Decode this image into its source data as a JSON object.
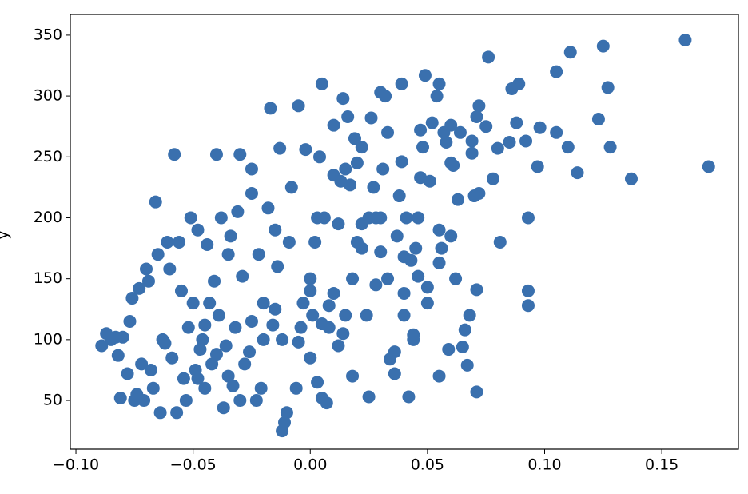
{
  "chart_data": {
    "type": "scatter",
    "ylabel": "y",
    "color": "#3a70ae",
    "xlim": [
      -0.1024,
      0.1827
    ],
    "ylim": [
      10,
      367
    ],
    "xticks": [
      {
        "value": -0.1,
        "label": "−0.10"
      },
      {
        "value": -0.05,
        "label": "−0.05"
      },
      {
        "value": 0,
        "label": "0.00"
      },
      {
        "value": 0.05,
        "label": "0.05"
      },
      {
        "value": 0.1,
        "label": "0.10"
      },
      {
        "value": 0.15,
        "label": "0.15"
      }
    ],
    "yticks": [
      50,
      100,
      150,
      200,
      250,
      300,
      350
    ],
    "x": [
      0.16,
      0.17,
      0.137,
      0.128,
      0.127,
      0.125,
      0.123,
      0.114,
      0.111,
      0.11,
      0.105,
      0.105,
      0.098,
      0.097,
      0.093,
      0.093,
      0.093,
      0.092,
      0.089,
      0.088,
      0.086,
      0.085,
      0.081,
      0.08,
      0.078,
      0.076,
      0.075,
      0.072,
      0.072,
      0.071,
      0.071,
      0.071,
      0.07,
      0.069,
      0.069,
      0.068,
      0.067,
      0.066,
      0.065,
      0.064,
      0.063,
      0.062,
      0.061,
      0.06,
      0.06,
      0.06,
      0.059,
      0.058,
      0.057,
      0.056,
      0.055,
      0.055,
      0.055,
      0.055,
      0.054,
      0.052,
      0.051,
      0.05,
      0.05,
      0.049,
      0.048,
      0.047,
      0.047,
      0.046,
      0.046,
      0.045,
      0.044,
      0.044,
      0.043,
      0.042,
      0.041,
      0.04,
      0.04,
      0.039,
      0.039,
      0.038,
      0.037,
      0.036,
      0.036,
      0.034,
      0.033,
      0.033,
      0.032,
      0.031,
      0.03,
      0.03,
      0.028,
      0.028,
      0.027,
      0.026,
      0.025,
      0.024,
      0.022,
      0.022,
      0.02,
      0.02,
      0.019,
      0.018,
      0.016,
      0.015,
      0.014,
      0.013,
      0.012,
      0.012,
      0.01,
      0.01,
      0.008,
      0.007,
      0.006,
      0.005,
      0.004,
      0.003,
      0.002,
      0.001,
      0.0,
      0.0,
      -0.002,
      -0.003,
      -0.004,
      -0.005,
      -0.006,
      -0.008,
      -0.009,
      -0.01,
      -0.011,
      -0.012,
      -0.013,
      -0.014,
      -0.015,
      -0.016,
      -0.017,
      -0.018,
      -0.02,
      -0.021,
      -0.022,
      -0.023,
      -0.025,
      -0.025,
      -0.026,
      -0.028,
      -0.029,
      -0.03,
      -0.031,
      -0.032,
      -0.033,
      -0.034,
      -0.035,
      -0.036,
      -0.037,
      -0.038,
      -0.039,
      -0.04,
      -0.041,
      -0.042,
      -0.043,
      -0.044,
      -0.045,
      -0.046,
      -0.047,
      -0.048,
      -0.049,
      -0.05,
      -0.051,
      -0.052,
      -0.053,
      -0.054,
      -0.055,
      -0.056,
      -0.057,
      -0.058,
      -0.059,
      -0.06,
      -0.061,
      -0.062,
      -0.063,
      -0.064,
      -0.065,
      -0.066,
      -0.067,
      -0.068,
      -0.069,
      -0.07,
      -0.071,
      -0.072,
      -0.073,
      -0.074,
      -0.075,
      -0.076,
      -0.077,
      -0.078,
      -0.08,
      -0.081,
      -0.082,
      -0.083,
      -0.085,
      -0.087,
      -0.089,
      0.0,
      0.008,
      0.005,
      -0.015,
      0.014,
      -0.005,
      0.018,
      0.022,
      0.01,
      0.017,
      -0.02,
      -0.045,
      -0.035,
      -0.03,
      -0.025,
      -0.04,
      -0.048,
      0.003,
      0.005,
      -0.012,
      0.025,
      0.015,
      0.03,
      0.04
    ],
    "values": [
      346,
      242,
      232,
      258,
      307,
      341,
      281,
      237,
      336,
      258,
      320,
      270,
      274,
      242,
      200,
      140,
      128,
      263,
      310,
      278,
      306,
      262,
      180,
      257,
      232,
      332,
      275,
      292,
      220,
      283,
      141,
      57,
      218,
      263,
      253,
      120,
      79,
      108,
      94,
      270,
      215,
      150,
      243,
      245,
      276,
      185,
      92,
      262,
      270,
      175,
      190,
      163,
      70,
      310,
      300,
      278,
      230,
      143,
      130,
      317,
      258,
      272,
      233,
      200,
      152,
      175,
      104,
      100,
      165,
      53,
      200,
      138,
      120,
      246,
      310,
      218,
      185,
      72,
      90,
      84,
      270,
      150,
      300,
      240,
      172,
      303,
      145,
      200,
      225,
      282,
      53,
      120,
      258,
      195,
      245,
      180,
      265,
      70,
      283,
      120,
      298,
      230,
      195,
      95,
      276,
      138,
      110,
      48,
      200,
      310,
      250,
      200,
      180,
      120,
      140,
      85,
      256,
      130,
      110,
      292,
      60,
      225,
      180,
      40,
      32,
      25,
      257,
      160,
      190,
      112,
      290,
      208,
      130,
      60,
      170,
      50,
      220,
      240,
      90,
      80,
      152,
      252,
      205,
      110,
      62,
      185,
      170,
      95,
      44,
      200,
      120,
      252,
      148,
      80,
      130,
      178,
      60,
      100,
      92,
      190,
      75,
      130,
      200,
      110,
      50,
      68,
      140,
      180,
      40,
      252,
      85,
      158,
      180,
      97,
      100,
      40,
      170,
      213,
      60,
      75,
      148,
      158,
      50,
      80,
      142,
      55,
      50,
      134,
      115,
      72,
      102,
      52,
      87,
      102,
      100,
      105,
      95,
      150,
      128,
      113,
      125,
      105,
      98,
      150,
      175,
      235,
      227,
      100,
      112,
      70,
      50,
      115,
      88,
      68,
      65,
      52,
      100,
      200,
      240,
      200,
      168
    ]
  }
}
